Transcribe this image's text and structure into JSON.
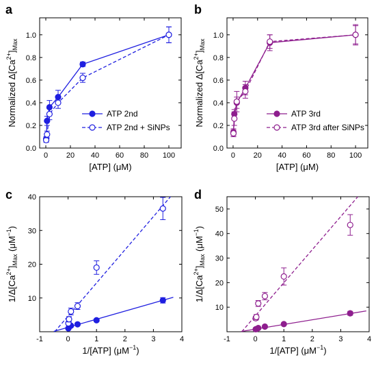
{
  "chart_data": [
    {
      "panel": "a",
      "type": "line",
      "xlabel": "[ATP] (μM)",
      "ylabel_main": "Normalized Δ[Ca",
      "ylabel_sup": "2+",
      "ylabel_close": "]",
      "ylabel_sub": "Max",
      "xlim": [
        -5,
        110
      ],
      "ylim": [
        0,
        1.15
      ],
      "xticks": [
        0,
        20,
        40,
        60,
        80,
        100
      ],
      "yticks": [
        0.0,
        0.2,
        0.4,
        0.6,
        0.8,
        1.0
      ],
      "xtick_labels": [
        "0",
        "20",
        "40",
        "60",
        "80",
        "100"
      ],
      "ytick_labels": [
        "0.0",
        "0.2",
        "0.4",
        "0.6",
        "0.8",
        "1.0"
      ],
      "color": "#1f1fe0",
      "legend_position": "bottom-right",
      "series": [
        {
          "name": "ATP 2nd",
          "style": "solid",
          "marker": "filled",
          "x": [
            0.3,
            1,
            3,
            10,
            30,
            100
          ],
          "y": [
            0.08,
            0.24,
            0.36,
            0.45,
            0.74,
            1.0
          ],
          "err": [
            0.02,
            0.04,
            0.06,
            0.06,
            0.02,
            0.07
          ]
        },
        {
          "name": "ATP 2nd + SiNPs",
          "style": "dashed",
          "marker": "open",
          "x": [
            0.3,
            1,
            3,
            10,
            30,
            100
          ],
          "y": [
            0.07,
            0.12,
            0.3,
            0.4,
            0.62,
            1.0
          ],
          "err": [
            0.02,
            0.03,
            0.05,
            0.05,
            0.04,
            0.07
          ]
        }
      ]
    },
    {
      "panel": "b",
      "type": "line",
      "xlabel": "[ATP] (μM)",
      "ylabel_main": "Normalized Δ[Ca",
      "ylabel_sup": "2+",
      "ylabel_close": "]",
      "ylabel_sub": "Max",
      "xlim": [
        -5,
        110
      ],
      "ylim": [
        0,
        1.15
      ],
      "xticks": [
        0,
        20,
        40,
        60,
        80,
        100
      ],
      "yticks": [
        0.0,
        0.2,
        0.4,
        0.6,
        0.8,
        1.0
      ],
      "xtick_labels": [
        "0",
        "20",
        "40",
        "60",
        "80",
        "100"
      ],
      "ytick_labels": [
        "0.0",
        "0.2",
        "0.4",
        "0.6",
        "0.8",
        "1.0"
      ],
      "color": "#8e1e8e",
      "legend_position": "bottom-right",
      "series": [
        {
          "name": "ATP 3rd",
          "style": "solid",
          "marker": "filled",
          "x": [
            0.3,
            1,
            3,
            10,
            30,
            100
          ],
          "y": [
            0.14,
            0.3,
            0.4,
            0.53,
            0.93,
            1.0
          ],
          "err": [
            0.03,
            0.04,
            0.05,
            0.06,
            0.07,
            0.08
          ]
        },
        {
          "name": "ATP 3rd after SiNPs",
          "style": "dashed",
          "marker": "open",
          "x": [
            0.3,
            1,
            3,
            10,
            30,
            100
          ],
          "y": [
            0.13,
            0.26,
            0.41,
            0.5,
            0.94,
            1.0
          ],
          "err": [
            0.03,
            0.06,
            0.09,
            0.06,
            0.06,
            0.09
          ]
        }
      ]
    },
    {
      "panel": "c",
      "type": "scatter",
      "xlabel_main": "1/[ATP] (μM",
      "xlabel_sup": "−1",
      "xlabel_close": ")",
      "ylabel_main": "1/Δ[Ca",
      "ylabel_sup": "2+",
      "ylabel_close": "]",
      "ylabel_sub": "Max",
      "ylabel_tail": " (μM",
      "ylabel_sup2": "−1",
      "ylabel_end": ")",
      "xlim": [
        -1,
        4
      ],
      "ylim": [
        0,
        40
      ],
      "xticks": [
        -1,
        0,
        1,
        2,
        3,
        4
      ],
      "yticks": [
        10,
        20,
        30,
        40
      ],
      "xtick_labels": [
        "-1",
        "0",
        "1",
        "2",
        "3",
        "4"
      ],
      "ytick_labels": [
        "10",
        "20",
        "30",
        "40"
      ],
      "color": "#1f1fe0",
      "series": [
        {
          "style": "solid",
          "marker": "filled",
          "x": [
            0.01,
            0.033,
            0.1,
            0.333,
            1,
            3.333
          ],
          "y": [
            1.0,
            1.35,
            1.8,
            2.2,
            3.4,
            9.3
          ],
          "err": [
            0.2,
            0.2,
            0.3,
            0.3,
            0.4,
            0.8
          ],
          "fit": {
            "x": [
              -0.5,
              3.7
            ],
            "y": [
              0.1,
              10.2
            ]
          }
        },
        {
          "style": "dashed",
          "marker": "open",
          "x": [
            0.01,
            0.033,
            0.1,
            0.333,
            1,
            3.333
          ],
          "y": [
            2.5,
            3.7,
            6.0,
            7.6,
            19.0,
            36.5
          ],
          "err": [
            0.4,
            0.8,
            1.0,
            1.0,
            2.0,
            3.3
          ],
          "fit": {
            "x": [
              -0.47,
              3.6
            ],
            "y": [
              0.0,
              40.0
            ]
          }
        }
      ]
    },
    {
      "panel": "d",
      "type": "scatter",
      "xlabel_main": "1/[ATP] (μM",
      "xlabel_sup": "−1",
      "xlabel_close": ")",
      "ylabel_main": "1/Δ[Ca",
      "ylabel_sup": "2+",
      "ylabel_close": "]",
      "ylabel_sub": "Max",
      "ylabel_tail": " (μM",
      "ylabel_sup2": "−1",
      "ylabel_end": ")",
      "xlim": [
        -1,
        4
      ],
      "ylim": [
        0,
        55
      ],
      "xticks": [
        -1,
        0,
        1,
        2,
        3,
        4
      ],
      "yticks": [
        10,
        20,
        30,
        40,
        50
      ],
      "xtick_labels": [
        "-1",
        "0",
        "1",
        "2",
        "3",
        "4"
      ],
      "ytick_labels": [
        "10",
        "20",
        "30",
        "40",
        "50"
      ],
      "color": "#8e1e8e",
      "series": [
        {
          "style": "solid",
          "marker": "filled",
          "x": [
            0.01,
            0.033,
            0.1,
            0.333,
            1,
            3.333
          ],
          "y": [
            1.0,
            1.1,
            1.5,
            2.1,
            3.1,
            7.5
          ],
          "err": [
            0.2,
            0.2,
            0.3,
            0.3,
            0.4,
            0.8
          ],
          "fit": {
            "x": [
              -0.5,
              3.9
            ],
            "y": [
              0.1,
              8.5
            ]
          }
        },
        {
          "style": "dashed",
          "marker": "open",
          "x": [
            0.01,
            0.033,
            0.1,
            0.333,
            1,
            3.333
          ],
          "y": [
            5.5,
            6.0,
            11.5,
            14.5,
            22.5,
            43.5
          ],
          "err": [
            0.8,
            1.0,
            1.2,
            1.5,
            3.5,
            4.2
          ],
          "fit": {
            "x": [
              -0.48,
              3.6
            ],
            "y": [
              0.0,
              55.0
            ]
          }
        }
      ]
    }
  ]
}
